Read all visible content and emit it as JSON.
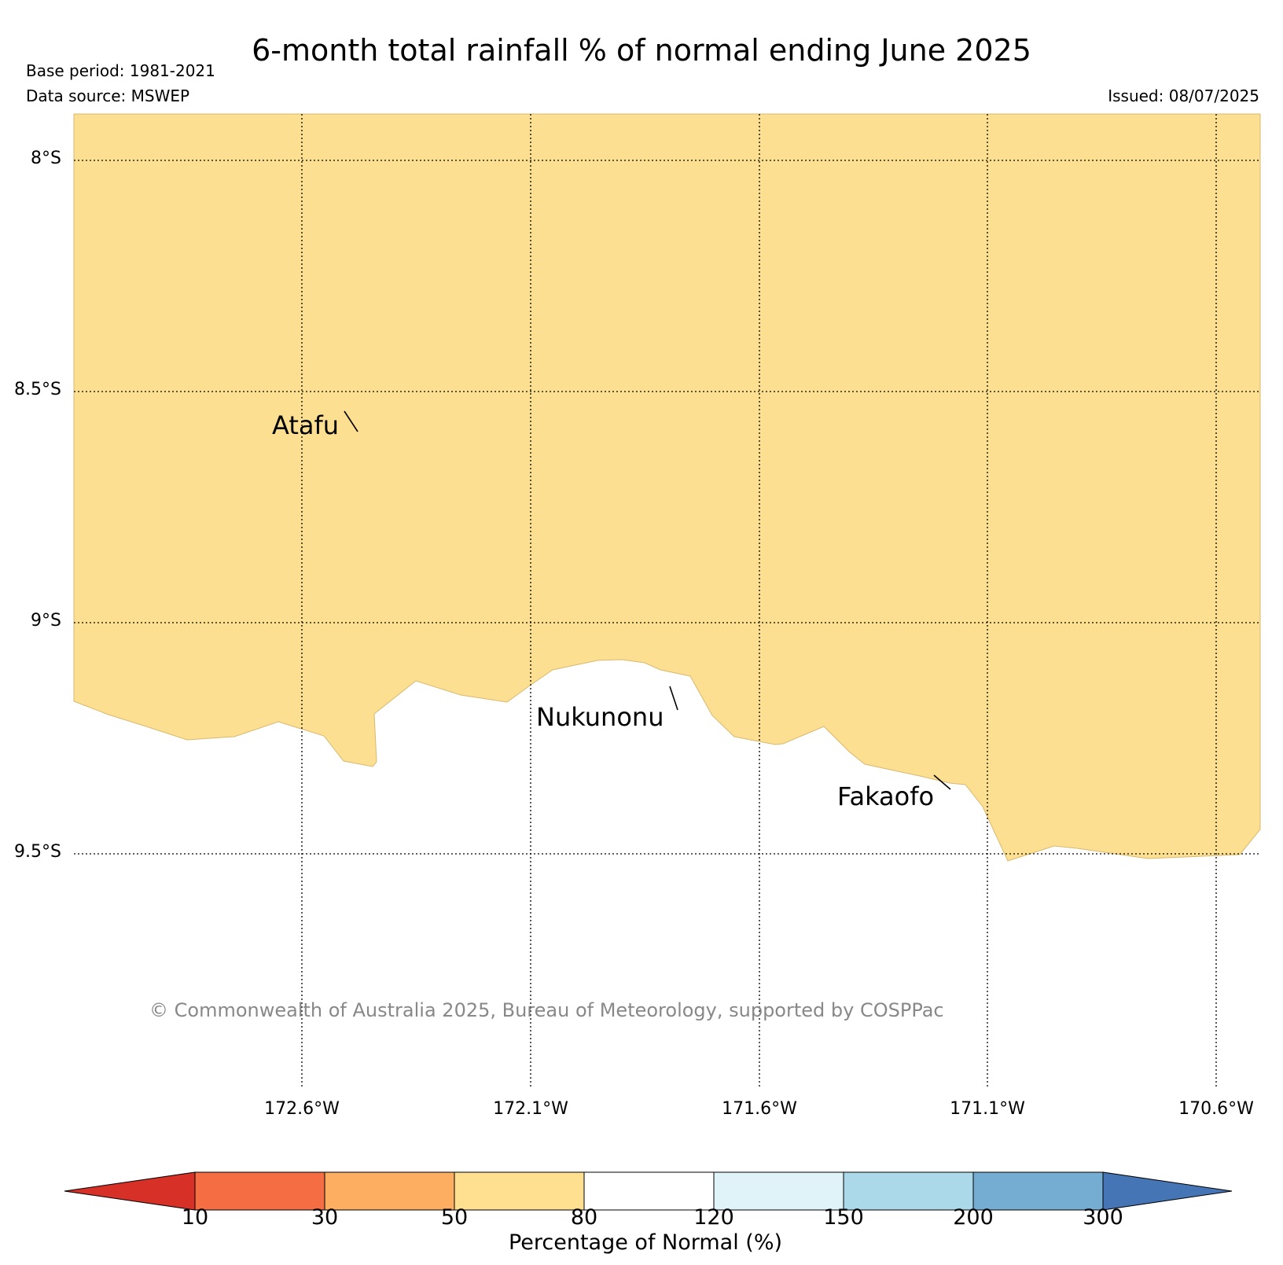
{
  "title": "6-month total rainfall % of normal ending June 2025",
  "base_period": "Base period: 1981-2021",
  "data_source": "Data source: MSWEP",
  "issued": "Issued: 08/07/2025",
  "latitudes": [
    "8°S",
    "8.5°S",
    "9°S",
    "9.5°S"
  ],
  "longitudes": [
    "172.6°W",
    "172.1°W",
    "171.6°W",
    "171.1°W",
    "170.6°W"
  ],
  "places": [
    "Atafu",
    "Nukunonu",
    "Fakaofo"
  ],
  "copyright": "© Commonwealth of Australia 2025, Bureau of Meteorology, supported by COSPPac",
  "fill_category": "50-80",
  "fill_color": "#fddf91",
  "colorbar": {
    "label": "Percentage of Normal (%)",
    "ticks": [
      "10",
      "30",
      "50",
      "80",
      "120",
      "150",
      "200",
      "300"
    ],
    "colors": [
      "#d73027",
      "#f46d43",
      "#fdae61",
      "#fee090",
      "#ffffff",
      "#e0f3f8",
      "#abd9e9",
      "#74add1",
      "#4575b4"
    ]
  }
}
